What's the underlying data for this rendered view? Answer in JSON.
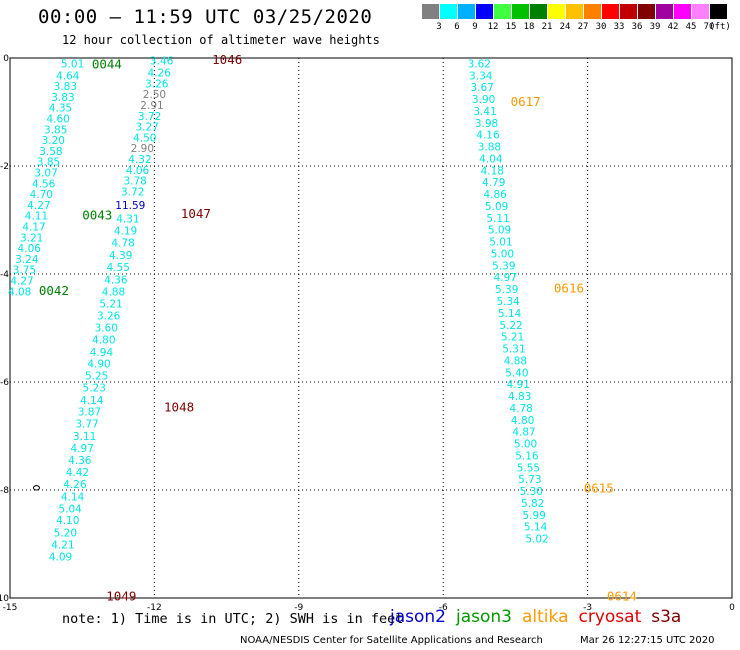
{
  "title": "00:00 — 11:59 UTC 03/25/2020",
  "subtitle": "12 hour collection of altimeter wave heights",
  "legend": {
    "unit": "(ft)",
    "bins": [
      {
        "label": "3",
        "color": "#808080"
      },
      {
        "label": "6",
        "color": "#00ffff"
      },
      {
        "label": "9",
        "color": "#00b0ff"
      },
      {
        "label": "12",
        "color": "#0000ff"
      },
      {
        "label": "15",
        "color": "#40ff40"
      },
      {
        "label": "18",
        "color": "#00c000"
      },
      {
        "label": "21",
        "color": "#008000"
      },
      {
        "label": "24",
        "color": "#ffff00"
      },
      {
        "label": "27",
        "color": "#ffc000"
      },
      {
        "label": "30",
        "color": "#ff8000"
      },
      {
        "label": "33",
        "color": "#ff0000"
      },
      {
        "label": "36",
        "color": "#c00000"
      },
      {
        "label": "39",
        "color": "#800000"
      },
      {
        "label": "42",
        "color": "#a000a0"
      },
      {
        "label": "45",
        "color": "#ff00ff"
      },
      {
        "label": "70",
        "color": "#ff80ff"
      },
      {
        "label": "",
        "color": "#000000"
      }
    ]
  },
  "map_extent": {
    "lon": [
      -15,
      0
    ],
    "lat": [
      -10,
      0
    ]
  },
  "x_ticks": [
    "-15",
    "-12",
    "-9",
    "-6",
    "-3",
    "0"
  ],
  "y_ticks": [
    "0",
    "-2",
    "-4",
    "-6",
    "-8",
    "-10"
  ],
  "colors": {
    "cyan": "#00e5e5",
    "gray": "#808080",
    "blue": "#0000c0",
    "jason3": "#008000",
    "altika": "#ff9900",
    "cryosat": "#cc0000",
    "s3a": "#800000"
  },
  "passes": [
    {
      "name": "pass-A",
      "points": [
        {
          "lon": -13.7,
          "lat": -0.1,
          "v": "5.01",
          "c": "cyan"
        },
        {
          "lon": -13.8,
          "lat": -0.32,
          "v": "4.64",
          "c": "cyan"
        },
        {
          "lon": -13.85,
          "lat": -0.52,
          "v": "3.83",
          "c": "cyan"
        },
        {
          "lon": -13.9,
          "lat": -0.72,
          "v": "3.83",
          "c": "cyan"
        },
        {
          "lon": -13.95,
          "lat": -0.92,
          "v": "4.35",
          "c": "cyan"
        },
        {
          "lon": -14.0,
          "lat": -1.12,
          "v": "4.60",
          "c": "cyan"
        },
        {
          "lon": -14.05,
          "lat": -1.32,
          "v": "3.85",
          "c": "cyan"
        },
        {
          "lon": -14.1,
          "lat": -1.52,
          "v": "3.20",
          "c": "cyan"
        },
        {
          "lon": -14.15,
          "lat": -1.72,
          "v": "3.58",
          "c": "cyan"
        },
        {
          "lon": -14.2,
          "lat": -1.92,
          "v": "3.85",
          "c": "cyan"
        },
        {
          "lon": -14.25,
          "lat": -2.12,
          "v": "3.07",
          "c": "cyan"
        },
        {
          "lon": -14.3,
          "lat": -2.32,
          "v": "4.56",
          "c": "cyan"
        },
        {
          "lon": -14.35,
          "lat": -2.52,
          "v": "4.70",
          "c": "cyan"
        },
        {
          "lon": -14.4,
          "lat": -2.72,
          "v": "4.27",
          "c": "cyan"
        },
        {
          "lon": -14.45,
          "lat": -2.92,
          "v": "4.11",
          "c": "cyan"
        },
        {
          "lon": -14.5,
          "lat": -3.12,
          "v": "4.17",
          "c": "cyan"
        },
        {
          "lon": -14.55,
          "lat": -3.32,
          "v": "3.21",
          "c": "cyan"
        },
        {
          "lon": -14.6,
          "lat": -3.52,
          "v": "4.06",
          "c": "cyan"
        },
        {
          "lon": -14.65,
          "lat": -3.72,
          "v": "3.24",
          "c": "cyan"
        },
        {
          "lon": -14.7,
          "lat": -3.92,
          "v": "3.75",
          "c": "cyan"
        },
        {
          "lon": -14.75,
          "lat": -4.12,
          "v": "4.27",
          "c": "cyan"
        },
        {
          "lon": -14.8,
          "lat": -4.32,
          "v": "4.08",
          "c": "cyan"
        }
      ]
    },
    {
      "name": "pass-B",
      "points": [
        {
          "lon": -11.85,
          "lat": -0.05,
          "v": "3.46",
          "c": "cyan"
        },
        {
          "lon": -11.9,
          "lat": -0.27,
          "v": "4.26",
          "c": "cyan"
        },
        {
          "lon": -11.95,
          "lat": -0.47,
          "v": "3.26",
          "c": "cyan"
        },
        {
          "lon": -12.0,
          "lat": -0.67,
          "v": "2.50",
          "c": "gray"
        },
        {
          "lon": -12.05,
          "lat": -0.87,
          "v": "2.91",
          "c": "gray"
        },
        {
          "lon": -12.1,
          "lat": -1.07,
          "v": "3.72",
          "c": "cyan"
        },
        {
          "lon": -12.15,
          "lat": -1.27,
          "v": "3.27",
          "c": "cyan"
        },
        {
          "lon": -12.2,
          "lat": -1.47,
          "v": "4.50",
          "c": "cyan"
        },
        {
          "lon": -12.25,
          "lat": -1.67,
          "v": "2.90",
          "c": "gray"
        },
        {
          "lon": -12.3,
          "lat": -1.87,
          "v": "4.32",
          "c": "cyan"
        },
        {
          "lon": -12.35,
          "lat": -2.07,
          "v": "4.06",
          "c": "cyan"
        },
        {
          "lon": -12.4,
          "lat": -2.27,
          "v": "3.78",
          "c": "cyan"
        },
        {
          "lon": -12.45,
          "lat": -2.47,
          "v": "3.72",
          "c": "cyan"
        },
        {
          "lon": -12.5,
          "lat": -2.72,
          "v": "11.59",
          "c": "blue"
        },
        {
          "lon": -12.55,
          "lat": -2.97,
          "v": "4.31",
          "c": "cyan"
        },
        {
          "lon": -12.6,
          "lat": -3.19,
          "v": "4.19",
          "c": "cyan"
        },
        {
          "lon": -12.65,
          "lat": -3.42,
          "v": "4.78",
          "c": "cyan"
        },
        {
          "lon": -12.7,
          "lat": -3.65,
          "v": "4.39",
          "c": "cyan"
        },
        {
          "lon": -12.75,
          "lat": -3.87,
          "v": "4.55",
          "c": "cyan"
        },
        {
          "lon": -12.8,
          "lat": -4.1,
          "v": "4.36",
          "c": "cyan"
        },
        {
          "lon": -12.85,
          "lat": -4.32,
          "v": "4.88",
          "c": "cyan"
        },
        {
          "lon": -12.9,
          "lat": -4.55,
          "v": "5.21",
          "c": "cyan"
        },
        {
          "lon": -12.95,
          "lat": -4.77,
          "v": "3.26",
          "c": "cyan"
        },
        {
          "lon": -13.0,
          "lat": -4.99,
          "v": "3.60",
          "c": "cyan"
        },
        {
          "lon": -13.05,
          "lat": -5.21,
          "v": "4.80",
          "c": "cyan"
        },
        {
          "lon": -13.1,
          "lat": -5.44,
          "v": "4.94",
          "c": "cyan"
        },
        {
          "lon": -13.15,
          "lat": -5.66,
          "v": "4.90",
          "c": "cyan"
        },
        {
          "lon": -13.2,
          "lat": -5.88,
          "v": "5.25",
          "c": "cyan"
        },
        {
          "lon": -13.25,
          "lat": -6.1,
          "v": "5.23",
          "c": "cyan"
        },
        {
          "lon": -13.3,
          "lat": -6.33,
          "v": "4.14",
          "c": "cyan"
        },
        {
          "lon": -13.35,
          "lat": -6.55,
          "v": "3.87",
          "c": "cyan"
        },
        {
          "lon": -13.4,
          "lat": -6.77,
          "v": "3.77",
          "c": "cyan"
        },
        {
          "lon": -13.45,
          "lat": -7.0,
          "v": "3.11",
          "c": "cyan"
        },
        {
          "lon": -13.5,
          "lat": -7.22,
          "v": "4.97",
          "c": "cyan"
        },
        {
          "lon": -13.55,
          "lat": -7.44,
          "v": "4.36",
          "c": "cyan"
        },
        {
          "lon": -13.6,
          "lat": -7.67,
          "v": "4.42",
          "c": "cyan"
        },
        {
          "lon": -13.65,
          "lat": -7.89,
          "v": "4.26",
          "c": "cyan"
        },
        {
          "lon": -13.7,
          "lat": -8.12,
          "v": "4.14",
          "c": "cyan"
        },
        {
          "lon": -13.75,
          "lat": -8.34,
          "v": "5.04",
          "c": "cyan"
        },
        {
          "lon": -13.8,
          "lat": -8.56,
          "v": "4.10",
          "c": "cyan"
        },
        {
          "lon": -13.85,
          "lat": -8.79,
          "v": "5.20",
          "c": "cyan"
        },
        {
          "lon": -13.9,
          "lat": -9.01,
          "v": "4.21",
          "c": "cyan"
        },
        {
          "lon": -13.95,
          "lat": -9.23,
          "v": "4.09",
          "c": "cyan"
        }
      ]
    },
    {
      "name": "pass-C",
      "points": [
        {
          "lon": -5.25,
          "lat": -0.1,
          "v": "3.62",
          "c": "cyan"
        },
        {
          "lon": -5.22,
          "lat": -0.32,
          "v": "3.34",
          "c": "cyan"
        },
        {
          "lon": -5.19,
          "lat": -0.54,
          "v": "3.67",
          "c": "cyan"
        },
        {
          "lon": -5.16,
          "lat": -0.76,
          "v": "3.90",
          "c": "cyan"
        },
        {
          "lon": -5.13,
          "lat": -0.98,
          "v": "3.41",
          "c": "cyan"
        },
        {
          "lon": -5.1,
          "lat": -1.2,
          "v": "3.98",
          "c": "cyan"
        },
        {
          "lon": -5.07,
          "lat": -1.42,
          "v": "4.16",
          "c": "cyan"
        },
        {
          "lon": -5.04,
          "lat": -1.64,
          "v": "3.88",
          "c": "cyan"
        },
        {
          "lon": -5.01,
          "lat": -1.86,
          "v": "4.04",
          "c": "cyan"
        },
        {
          "lon": -4.98,
          "lat": -2.08,
          "v": "4.18",
          "c": "cyan"
        },
        {
          "lon": -4.95,
          "lat": -2.3,
          "v": "4.79",
          "c": "cyan"
        },
        {
          "lon": -4.92,
          "lat": -2.52,
          "v": "4.86",
          "c": "cyan"
        },
        {
          "lon": -4.89,
          "lat": -2.74,
          "v": "5.09",
          "c": "cyan"
        },
        {
          "lon": -4.86,
          "lat": -2.96,
          "v": "5.11",
          "c": "cyan"
        },
        {
          "lon": -4.83,
          "lat": -3.18,
          "v": "5.09",
          "c": "cyan"
        },
        {
          "lon": -4.8,
          "lat": -3.4,
          "v": "5.01",
          "c": "cyan"
        },
        {
          "lon": -4.77,
          "lat": -3.62,
          "v": "5.00",
          "c": "cyan"
        },
        {
          "lon": -4.74,
          "lat": -3.84,
          "v": "5.39",
          "c": "cyan"
        },
        {
          "lon": -4.71,
          "lat": -4.06,
          "v": "4.97",
          "c": "cyan"
        },
        {
          "lon": -4.68,
          "lat": -4.28,
          "v": "5.39",
          "c": "cyan"
        },
        {
          "lon": -4.65,
          "lat": -4.5,
          "v": "5.34",
          "c": "cyan"
        },
        {
          "lon": -4.62,
          "lat": -4.72,
          "v": "5.14",
          "c": "cyan"
        },
        {
          "lon": -4.59,
          "lat": -4.94,
          "v": "5.22",
          "c": "cyan"
        },
        {
          "lon": -4.56,
          "lat": -5.16,
          "v": "5.21",
          "c": "cyan"
        },
        {
          "lon": -4.53,
          "lat": -5.38,
          "v": "5.31",
          "c": "cyan"
        },
        {
          "lon": -4.5,
          "lat": -5.6,
          "v": "4.88",
          "c": "cyan"
        },
        {
          "lon": -4.47,
          "lat": -5.82,
          "v": "5.40",
          "c": "cyan"
        },
        {
          "lon": -4.44,
          "lat": -6.04,
          "v": "4.91",
          "c": "cyan"
        },
        {
          "lon": -4.41,
          "lat": -6.26,
          "v": "4.83",
          "c": "cyan"
        },
        {
          "lon": -4.38,
          "lat": -6.48,
          "v": "4.78",
          "c": "cyan"
        },
        {
          "lon": -4.35,
          "lat": -6.7,
          "v": "4.80",
          "c": "cyan"
        },
        {
          "lon": -4.32,
          "lat": -6.92,
          "v": "4.87",
          "c": "cyan"
        },
        {
          "lon": -4.29,
          "lat": -7.14,
          "v": "5.00",
          "c": "cyan"
        },
        {
          "lon": -4.26,
          "lat": -7.36,
          "v": "5.16",
          "c": "cyan"
        },
        {
          "lon": -4.23,
          "lat": -7.58,
          "v": "5.55",
          "c": "cyan"
        },
        {
          "lon": -4.2,
          "lat": -7.8,
          "v": "5.73",
          "c": "cyan"
        },
        {
          "lon": -4.17,
          "lat": -8.02,
          "v": "5.30",
          "c": "cyan"
        },
        {
          "lon": -4.14,
          "lat": -8.24,
          "v": "5.82",
          "c": "cyan"
        },
        {
          "lon": -4.11,
          "lat": -8.46,
          "v": "5.99",
          "c": "cyan"
        },
        {
          "lon": -4.08,
          "lat": -8.68,
          "v": "5.14",
          "c": "cyan"
        },
        {
          "lon": -4.05,
          "lat": -8.9,
          "v": "5.02",
          "c": "cyan"
        }
      ]
    }
  ],
  "time_tags": [
    {
      "lon": -13.3,
      "lat": -0.1,
      "t": "0044",
      "c": "jason3"
    },
    {
      "lon": -10.8,
      "lat": -0.02,
      "t": "1046",
      "c": "s3a"
    },
    {
      "lon": -13.5,
      "lat": -2.9,
      "t": "0043",
      "c": "jason3"
    },
    {
      "lon": -11.45,
      "lat": -2.87,
      "t": "1047",
      "c": "s3a"
    },
    {
      "lon": -14.4,
      "lat": -4.3,
      "t": "0042",
      "c": "jason3"
    },
    {
      "lon": -11.8,
      "lat": -6.45,
      "t": "1048",
      "c": "s3a"
    },
    {
      "lon": -13.0,
      "lat": -9.95,
      "t": "1049",
      "c": "s3a"
    },
    {
      "lon": -4.6,
      "lat": -0.8,
      "t": "0617",
      "c": "altika"
    },
    {
      "lon": -3.7,
      "lat": -4.25,
      "t": "0616",
      "c": "altika"
    },
    {
      "lon": -3.08,
      "lat": -7.95,
      "t": "0615",
      "c": "altika"
    },
    {
      "lon": -2.6,
      "lat": -9.95,
      "t": "0614",
      "c": "altika"
    }
  ],
  "land_marker": {
    "lon": -14.45,
    "lat": -7.96
  },
  "note": "note: 1) Time is in UTC; 2) SWH is in feet",
  "satellites": [
    {
      "name": "jason2",
      "color": "#0000cc"
    },
    {
      "name": "jason3",
      "color": "#009900"
    },
    {
      "name": "altika",
      "color": "#ff9900"
    },
    {
      "name": "cryosat",
      "color": "#e00000"
    },
    {
      "name": "s3a",
      "color": "#800000"
    }
  ],
  "credit": "NOAA/NESDIS Center for Satellite Applications and Research",
  "generated": "Mar 26 12:27:15 UTC 2020"
}
